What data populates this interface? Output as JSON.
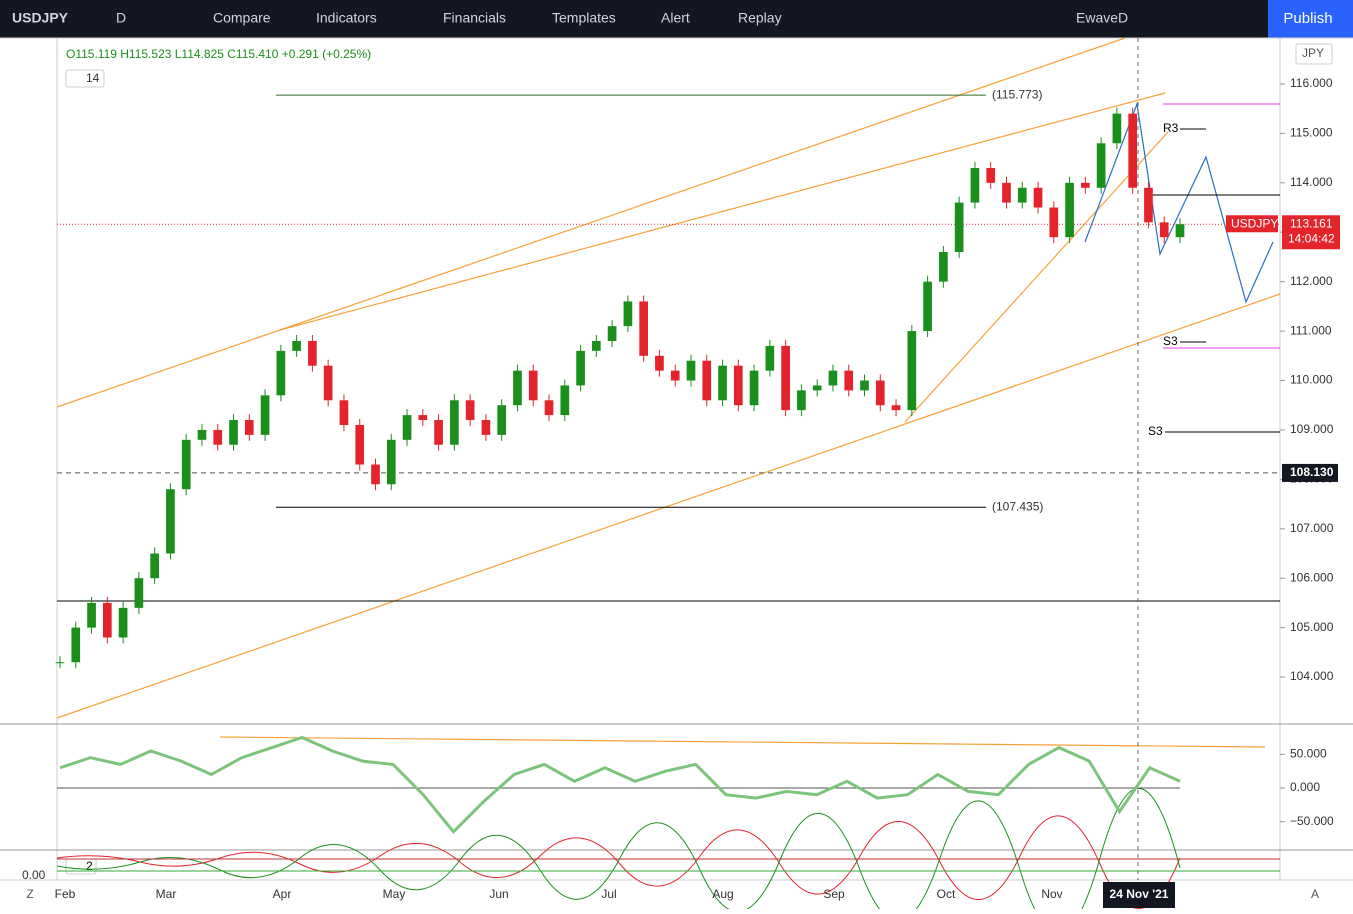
{
  "toolbar": {
    "symbol": "USDJPY",
    "interval": "D",
    "items": [
      "Compare",
      "Indicators",
      "Financials",
      "Templates",
      "Alert",
      "Replay"
    ],
    "user": "EwaveD",
    "publish": "Publish"
  },
  "legend": {
    "ohlc": "O115.119 H115.523 L114.825 C115.410 +0.291 (+0.25%)",
    "badge": "14",
    "currency": "JPY"
  },
  "chart_data": {
    "type": "candlestick",
    "closes": [
      104.3,
      105.0,
      105.5,
      104.8,
      105.4,
      106.0,
      106.5,
      107.8,
      108.8,
      109.0,
      108.7,
      109.2,
      108.9,
      109.7,
      110.6,
      110.8,
      110.3,
      109.6,
      109.1,
      108.3,
      107.9,
      108.8,
      109.3,
      109.2,
      108.7,
      109.6,
      109.2,
      108.9,
      109.5,
      110.2,
      109.6,
      109.3,
      109.9,
      110.6,
      110.8,
      111.1,
      111.6,
      110.5,
      110.2,
      110.0,
      110.4,
      109.6,
      110.3,
      109.5,
      110.2,
      110.7,
      109.4,
      109.8,
      109.9,
      110.2,
      109.8,
      110.0,
      109.5,
      109.4,
      111.0,
      112.0,
      112.6,
      113.6,
      114.3,
      114.0,
      113.6,
      113.9,
      113.5,
      112.9,
      114.0,
      113.9,
      114.8,
      115.4,
      113.9,
      113.2,
      112.9,
      113.161
    ],
    "up_color": "#1b8f1b",
    "down_color": "#e3242b",
    "months": [
      "Feb",
      "Mar",
      "Apr",
      "May",
      "Jun",
      "Jul",
      "Aug",
      "Sep",
      "Oct",
      "Nov"
    ],
    "cursor_date": "24 Nov '21",
    "ylim": [
      103.05,
      116.93
    ],
    "yticks": [
      {
        "value": 104,
        "label": "104.000"
      },
      {
        "value": 105,
        "label": "105.000"
      },
      {
        "value": 106,
        "label": "106.000"
      },
      {
        "value": 107,
        "label": "107.000"
      },
      {
        "value": 108,
        "label": "108.000"
      },
      {
        "value": 109,
        "label": "109.000"
      },
      {
        "value": 110,
        "label": "110.000"
      },
      {
        "value": 111,
        "label": "111.000"
      },
      {
        "value": 112,
        "label": "112.000"
      },
      {
        "value": 113,
        "label": "113.000"
      },
      {
        "value": 114,
        "label": "114.000"
      },
      {
        "value": 115,
        "label": "115.000"
      },
      {
        "value": 116,
        "label": "116.000"
      }
    ],
    "levels": [
      {
        "value": 115.773,
        "label": "(115.773)"
      },
      {
        "value": 107.435,
        "label": "(107.435)"
      }
    ],
    "crosshair": {
      "value": 108.13,
      "label": "108.130"
    },
    "last": {
      "value": 113.161,
      "label": "113.161",
      "name": "USDJPY",
      "countdown": "14:04:42"
    },
    "pivots": [
      "R3",
      "S3",
      "S3"
    ]
  },
  "indicator": {
    "type": "line",
    "values": [
      30,
      45,
      35,
      55,
      40,
      20,
      45,
      60,
      75,
      55,
      40,
      35,
      -10,
      -65,
      -20,
      20,
      35,
      10,
      30,
      10,
      25,
      35,
      -10,
      -15,
      -5,
      -10,
      10,
      -15,
      -10,
      20,
      -5,
      -10,
      35,
      60,
      40,
      -35,
      30,
      10
    ],
    "color": "#7cc47c",
    "ylim": [
      -92,
      95
    ],
    "yticks": [
      {
        "value": 50,
        "label": "50.000"
      },
      {
        "value": 0,
        "label": "0.000"
      },
      {
        "value": -50,
        "label": "−50.000"
      }
    ]
  },
  "pane3": {
    "badge": "2",
    "label": "0.00"
  },
  "corners": {
    "left": "Z",
    "right": "A"
  }
}
